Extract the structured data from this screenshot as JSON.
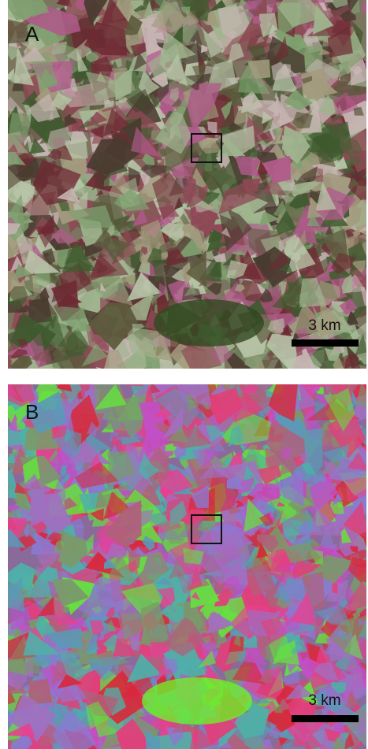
{
  "panels": [
    {
      "label": "A",
      "scale_bar": "3 km"
    },
    {
      "label": "B",
      "scale_bar": "3 km"
    }
  ]
}
